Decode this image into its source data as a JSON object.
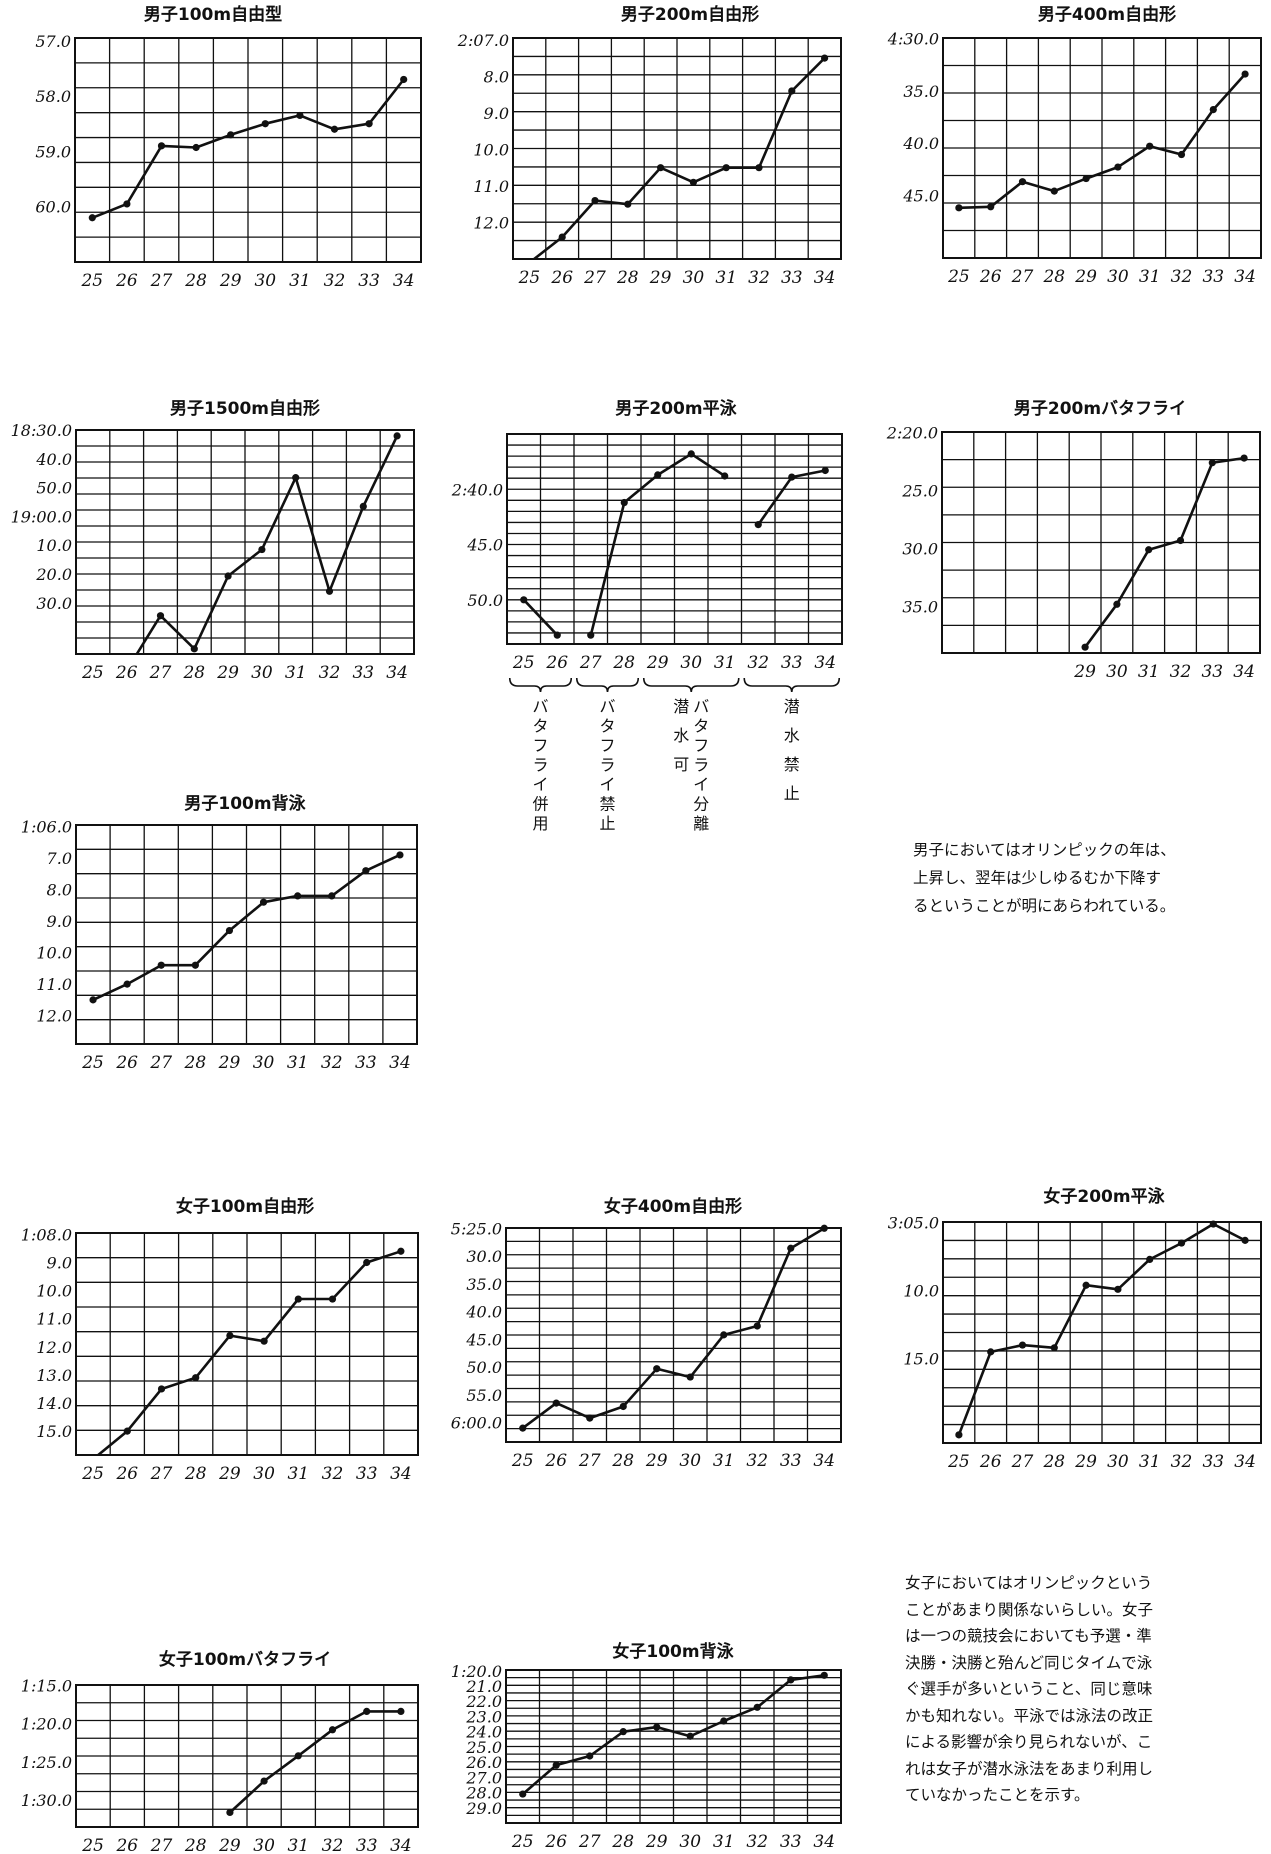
{
  "chart_data": [
    {
      "id": "m100free",
      "type": "line",
      "title": "男子100m自由型",
      "x": [
        25,
        26,
        27,
        28,
        29,
        30,
        31,
        32,
        33,
        34
      ],
      "y": [
        60.2,
        59.95,
        58.9,
        58.93,
        58.7,
        58.5,
        58.35,
        58.6,
        58.5,
        57.7
      ],
      "yticks": [
        "57.0",
        "58.0",
        "59.0",
        "60.0"
      ],
      "ytick_values": [
        57,
        58,
        59,
        60
      ],
      "ylim": [
        56.95,
        61.0
      ],
      "xticks": [
        "25",
        "26",
        "27",
        "28",
        "29",
        "30",
        "31",
        "32",
        "33",
        "34"
      ],
      "y_inverted": true,
      "grid": true
    },
    {
      "id": "m200free",
      "type": "line",
      "title": "男子200m自由形",
      "x": [
        25,
        26,
        27,
        28,
        29,
        30,
        31,
        32,
        33,
        34
      ],
      "y": [
        13.1,
        12.4,
        11.4,
        11.5,
        10.5,
        10.9,
        10.5,
        10.5,
        8.4,
        7.5
      ],
      "yticks": [
        "2:07.0",
        "8.0",
        "9.0",
        "10.0",
        "11.0",
        "12.0"
      ],
      "ytick_values": [
        7,
        8,
        9,
        10,
        11,
        12
      ],
      "ylim": [
        6.95,
        13.0
      ],
      "xticks": [
        "25",
        "26",
        "27",
        "28",
        "29",
        "30",
        "31",
        "32",
        "33",
        "34"
      ],
      "y_inverted": true,
      "grid": true
    },
    {
      "id": "m400free",
      "type": "line",
      "title": "男子400m自由形",
      "x": [
        25,
        26,
        27,
        28,
        29,
        30,
        31,
        32,
        33,
        34
      ],
      "y": [
        46.2,
        46.1,
        43.7,
        44.6,
        43.4,
        42.3,
        40.3,
        41.1,
        36.8,
        33.4
      ],
      "yticks": [
        "4:30.0",
        "35.0",
        "40.0",
        "45.0"
      ],
      "ytick_values": [
        30,
        35,
        40,
        45
      ],
      "ylim": [
        29.95,
        51.0
      ],
      "xticks": [
        "25",
        "26",
        "27",
        "28",
        "29",
        "30",
        "31",
        "32",
        "33",
        "34"
      ],
      "y_inverted": true,
      "grid": true
    },
    {
      "id": "m1500free",
      "type": "line",
      "title": "男子1500m自由形",
      "x": [
        25,
        26,
        27,
        28,
        29,
        30,
        31,
        32,
        33,
        34
      ],
      "y": [
        78.5,
        83.5,
        64.5,
        76.0,
        50.7,
        41.5,
        16.5,
        56.0,
        26.5,
        2.0
      ],
      "yticks": [
        "18:30.0",
        "40.0",
        "50.0",
        "19:00.0",
        "10.0",
        "20.0",
        "30.0"
      ],
      "ytick_values": [
        0,
        10,
        20,
        30,
        40,
        50,
        60
      ],
      "ylim": [
        -0.05,
        77.8
      ],
      "xticks": [
        "25",
        "26",
        "27",
        "28",
        "29",
        "30",
        "31",
        "32",
        "33",
        "34"
      ],
      "y_inverted": true,
      "grid": true
    },
    {
      "id": "m200breast",
      "type": "line",
      "title": "男子200m平泳",
      "x": [
        25,
        26,
        27,
        28,
        29,
        30,
        31,
        32,
        33,
        34
      ],
      "y": [
        50.0,
        53.2,
        53.2,
        41.2,
        38.7,
        36.8,
        38.8,
        43.2,
        38.9,
        38.3
      ],
      "segments": [
        [
          0,
          1
        ],
        [
          2,
          6
        ],
        [
          7,
          9
        ]
      ],
      "yticks": [
        "2:40.0",
        "45.0",
        "50.0"
      ],
      "ytick_values": [
        40,
        45,
        50
      ],
      "ylim": [
        35.0,
        54.0
      ],
      "xticks": [
        "25",
        "26",
        "27",
        "28",
        "29",
        "30",
        "31",
        "32",
        "33",
        "34"
      ],
      "y_inverted": true,
      "grid": true,
      "brackets": [
        {
          "from": 25,
          "to": 26,
          "lines": [
            "バタフライ併用"
          ]
        },
        {
          "from": 27,
          "to": 28,
          "lines": [
            "バタフライ禁止"
          ]
        },
        {
          "from": 29,
          "to": 31,
          "lines": [
            "バタフライ分離",
            "潜水可"
          ]
        },
        {
          "from": 32,
          "to": 34,
          "lines": [
            "潜水禁止"
          ]
        }
      ]
    },
    {
      "id": "m200fly",
      "type": "line",
      "title": "男子200mバタフライ",
      "x": [
        29,
        30,
        31,
        32,
        33,
        34
      ],
      "y": [
        38.5,
        34.8,
        30.1,
        29.3,
        22.6,
        22.2
      ],
      "yticks": [
        "2:20.0",
        "25.0",
        "30.0",
        "35.0"
      ],
      "ytick_values": [
        20,
        25,
        30,
        35
      ],
      "ylim": [
        19.95,
        39.0
      ],
      "xticks": [
        "29",
        "30",
        "31",
        "32",
        "33",
        "34"
      ],
      "xdomain": [
        25,
        34
      ],
      "y_inverted": true,
      "grid": true
    },
    {
      "id": "m100back",
      "type": "line",
      "title": "男子100m背泳",
      "x": [
        25,
        26,
        27,
        28,
        29,
        30,
        31,
        32,
        33,
        34
      ],
      "y": [
        11.5,
        11.0,
        10.4,
        10.4,
        9.3,
        8.4,
        8.2,
        8.2,
        7.4,
        6.9
      ],
      "yticks": [
        "1:06.0",
        "7.0",
        "8.0",
        "9.0",
        "10.0",
        "11.0",
        "12.0"
      ],
      "ytick_values": [
        6,
        7,
        8,
        9,
        10,
        11,
        12
      ],
      "ylim": [
        5.95,
        12.9
      ],
      "xticks": [
        "25",
        "26",
        "27",
        "28",
        "29",
        "30",
        "31",
        "32",
        "33",
        "34"
      ],
      "y_inverted": true,
      "grid": true
    },
    {
      "id": "w100free",
      "type": "line",
      "title": "女子100m自由形",
      "x": [
        25,
        26,
        27,
        28,
        29,
        30,
        31,
        32,
        33,
        34
      ],
      "y": [
        16.0,
        15.0,
        13.5,
        13.1,
        11.6,
        11.8,
        10.3,
        10.3,
        9.0,
        8.6
      ],
      "yticks": [
        "1:08.0",
        "9.0",
        "10.0",
        "11.0",
        "12.0",
        "13.0",
        "14.0",
        "15.0"
      ],
      "ytick_values": [
        8,
        9,
        10,
        11,
        12,
        13,
        14,
        15
      ],
      "ylim": [
        7.95,
        15.85
      ],
      "xticks": [
        "25",
        "26",
        "27",
        "28",
        "29",
        "30",
        "31",
        "32",
        "33",
        "34"
      ],
      "y_inverted": true,
      "grid": true
    },
    {
      "id": "w400free",
      "type": "line",
      "title": "女子400m自由形",
      "x": [
        25,
        26,
        27,
        28,
        29,
        30,
        31,
        32,
        33,
        34
      ],
      "y": [
        61.0,
        56.5,
        59.2,
        57.1,
        50.3,
        51.8,
        44.2,
        42.6,
        28.6,
        25.0
      ],
      "yticks": [
        "5:25.0",
        "30.0",
        "35.0",
        "40.0",
        "45.0",
        "50.0",
        "55.0",
        "6:00.0"
      ],
      "ytick_values": [
        25,
        30,
        35,
        40,
        45,
        50,
        55,
        60
      ],
      "ylim": [
        24.95,
        63.5
      ],
      "xticks": [
        "25",
        "26",
        "27",
        "28",
        "29",
        "30",
        "31",
        "32",
        "33",
        "34"
      ],
      "y_inverted": true,
      "grid": true
    },
    {
      "id": "w200breast",
      "type": "line",
      "title": "女子200m平泳",
      "x": [
        25,
        26,
        27,
        28,
        29,
        30,
        31,
        32,
        33,
        34
      ],
      "y": [
        20.6,
        14.5,
        14.0,
        14.2,
        9.6,
        9.9,
        7.7,
        6.5,
        5.1,
        6.3
      ],
      "yticks": [
        "3:05.0",
        "10.0",
        "15.0"
      ],
      "ytick_values": [
        5,
        10,
        15
      ],
      "ylim": [
        4.95,
        21.2
      ],
      "xticks": [
        "25",
        "26",
        "27",
        "28",
        "29",
        "30",
        "31",
        "32",
        "33",
        "34"
      ],
      "y_inverted": true,
      "grid": true
    },
    {
      "id": "w100fly",
      "type": "line",
      "title": "女子100mバタフライ",
      "x": [
        29,
        30,
        31,
        32,
        33,
        34
      ],
      "y": [
        31.6,
        27.5,
        24.2,
        20.8,
        18.4,
        18.4
      ],
      "yticks": [
        "1:15.0",
        "1:20.0",
        "1:25.0",
        "1:30.0"
      ],
      "ytick_values": [
        15,
        20,
        25,
        30
      ],
      "ylim": [
        14.95,
        33.5
      ],
      "xticks": [
        "25",
        "26",
        "27",
        "28",
        "29",
        "30",
        "31",
        "32",
        "33",
        "34"
      ],
      "y_inverted": true,
      "grid": true
    },
    {
      "id": "w100back",
      "type": "line",
      "title": "女子100m背泳",
      "x": [
        25,
        26,
        27,
        28,
        29,
        30,
        31,
        32,
        33,
        34
      ],
      "y": [
        28.1,
        26.2,
        25.6,
        24.0,
        23.7,
        24.3,
        23.3,
        22.4,
        20.6,
        20.3
      ],
      "yticks": [
        "1:20.0",
        "21.0",
        "22.0",
        "23.0",
        "24.0",
        "25.0",
        "26.0",
        "27.0",
        "28.0",
        "29.0"
      ],
      "ytick_values": [
        20,
        21,
        22,
        23,
        24,
        25,
        26,
        27,
        28,
        29
      ],
      "ylim": [
        19.95,
        30.0
      ],
      "xticks": [
        "25",
        "26",
        "27",
        "28",
        "29",
        "30",
        "31",
        "32",
        "33",
        "34"
      ],
      "y_inverted": true,
      "grid": true
    }
  ],
  "notes": {
    "men": [
      "男子においてはオリンピックの年は、",
      "上昇し、翌年は少しゆるむか下降す",
      "るということが明にあらわれている。"
    ],
    "women": [
      "女子においてはオリンピックという",
      "ことがあまり関係ないらしい。女子",
      "は一つの競技会においても予選・準",
      "決勝・決勝と殆んど同じタイムで泳",
      "ぐ選手が多いということ、同じ意味",
      "かも知れない。平泳では泳法の改正",
      "による影響が余り見られないが、こ",
      "れは女子が潜水泳法をあまり利用し",
      "ていなかったことを示す。"
    ]
  }
}
